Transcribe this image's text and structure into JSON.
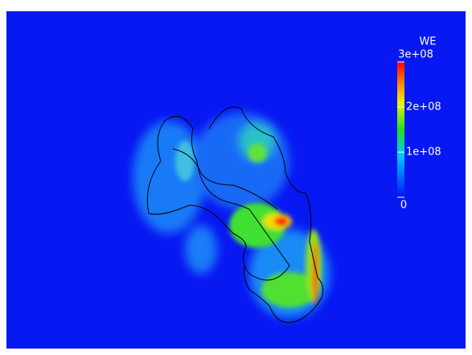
{
  "chart_data": {
    "type": "colorbar",
    "title": "WE",
    "clim": [
      0,
      300000000
    ],
    "ticks": [
      0,
      {
        "value": 100000000,
        "label": "1e+08"
      },
      {
        "value": 200000000,
        "label": "2e+08"
      },
      {
        "value": 300000000,
        "label": "3e+08"
      }
    ]
  }
}
